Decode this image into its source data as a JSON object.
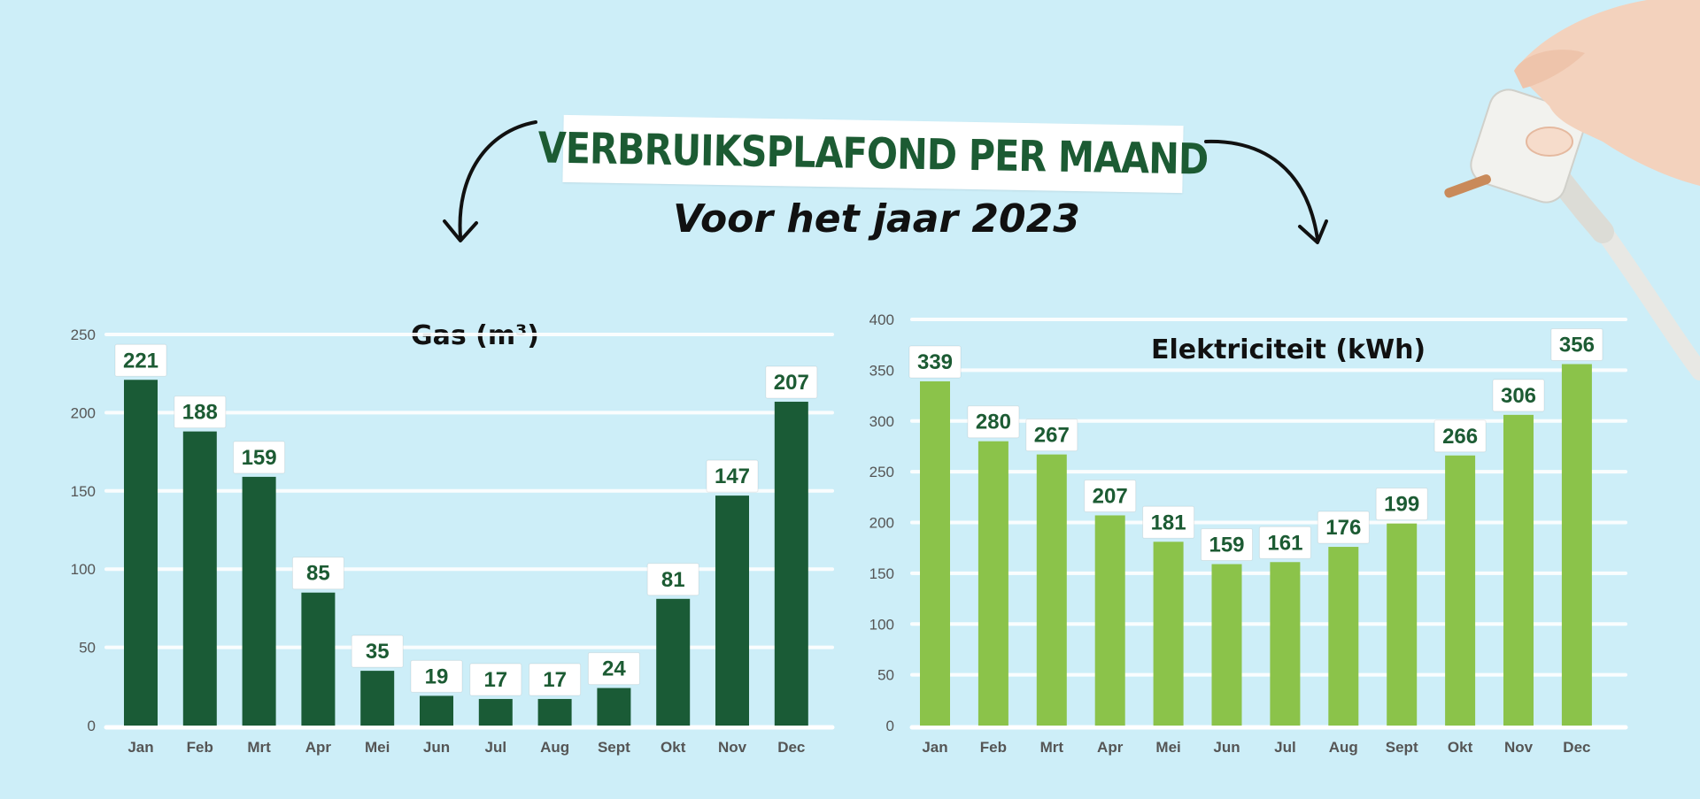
{
  "header": {
    "title": "VERBRUIKSPLAFOND PER MAAND",
    "subtitle": "Voor het jaar 2023"
  },
  "colors": {
    "background": "#cdeef8",
    "gas_bar": "#1a5b36",
    "electric_bar": "#8bc34a",
    "label_text": "#1c5b33",
    "title_text": "#1c5b33"
  },
  "chart_data": [
    {
      "type": "bar",
      "title": "Gas (m³)",
      "categories": [
        "Jan",
        "Feb",
        "Mrt",
        "Apr",
        "Mei",
        "Jun",
        "Jul",
        "Aug",
        "Sept",
        "Okt",
        "Nov",
        "Dec"
      ],
      "values": [
        221,
        188,
        159,
        85,
        35,
        19,
        17,
        17,
        24,
        81,
        147,
        207
      ],
      "yticks": [
        0,
        50,
        100,
        150,
        200,
        250
      ],
      "ylim": [
        0,
        250
      ],
      "grid": true
    },
    {
      "type": "bar",
      "title": "Elektriciteit (kWh)",
      "categories": [
        "Jan",
        "Feb",
        "Mrt",
        "Apr",
        "Mei",
        "Jun",
        "Jul",
        "Aug",
        "Sept",
        "Okt",
        "Nov",
        "Dec"
      ],
      "values": [
        339,
        280,
        267,
        207,
        181,
        159,
        161,
        176,
        199,
        266,
        306,
        356
      ],
      "yticks": [
        0,
        50,
        100,
        150,
        200,
        250,
        300,
        350,
        400
      ],
      "ylim": [
        0,
        400
      ],
      "grid": true
    }
  ]
}
